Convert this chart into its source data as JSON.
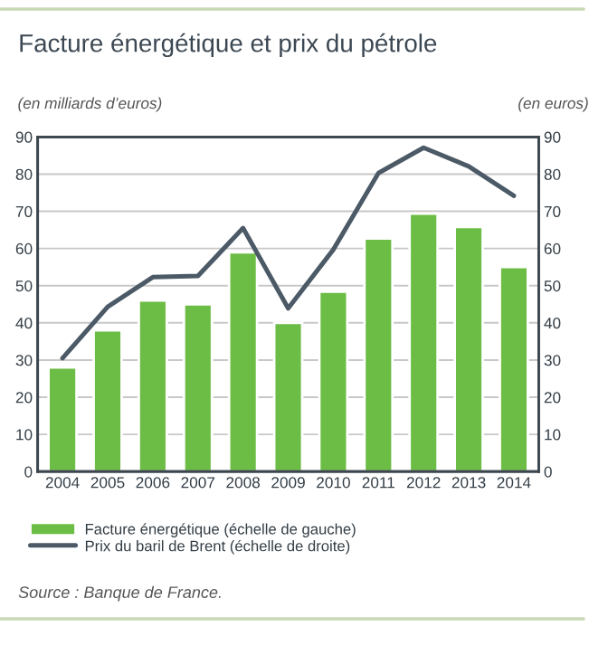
{
  "chart_data": {
    "type": "bar",
    "title": "Facture énergétique et prix du pétrole",
    "ylabel": "(en milliards d’euros)",
    "y2label": "(en euros)",
    "categories": [
      "2004",
      "2005",
      "2006",
      "2007",
      "2008",
      "2009",
      "2010",
      "2011",
      "2012",
      "2013",
      "2014"
    ],
    "series": [
      {
        "name": "Facture énergétique (échelle de gauche)",
        "color": "#6cbd45",
        "values": [
          28,
          38,
          46,
          45,
          59,
          40,
          48.4,
          62.7,
          69.4,
          65.8,
          55
        ]
      },
      {
        "name": "Prix du baril de Brent (échelle de droite)",
        "type": "line",
        "axis": "y2",
        "color": "#4b5a66",
        "values": [
          30.5,
          44.3,
          52.3,
          52.6,
          65.5,
          43.9,
          59.7,
          80.3,
          87.1,
          82.1,
          74.2
        ]
      }
    ],
    "ylim": [
      0,
      90
    ],
    "yticks": [
      0,
      10,
      20,
      30,
      40,
      50,
      60,
      70,
      80,
      90
    ],
    "y2lim": [
      0,
      90
    ],
    "y2ticks": [
      0,
      10,
      20,
      30,
      40,
      50,
      60,
      70,
      80,
      90
    ],
    "grid": "y",
    "legend": "bottom",
    "annotations": [
      "Source : Banque de France."
    ]
  }
}
